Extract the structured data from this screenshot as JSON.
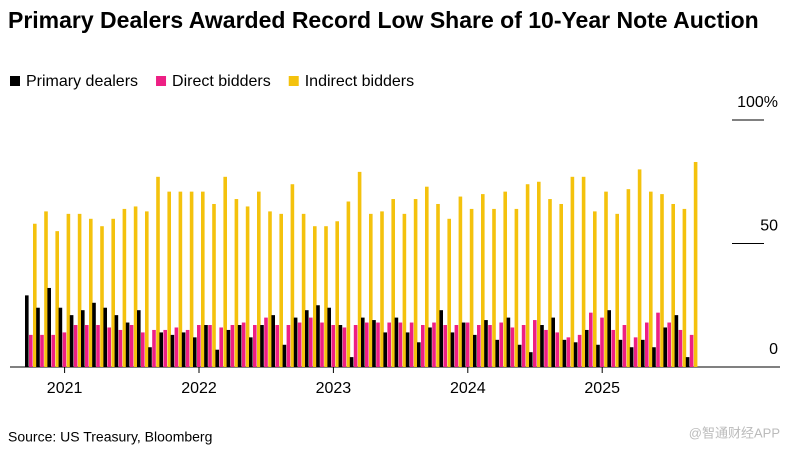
{
  "chart_data": {
    "type": "bar",
    "title": "Primary Dealers Awarded Record Low Share of 10-Year Note Auction",
    "source": "Source: US Treasury, Bloomberg",
    "watermark": "@智通财经APP",
    "categories": [
      null,
      null,
      null,
      "2021",
      null,
      null,
      null,
      null,
      null,
      null,
      null,
      null,
      null,
      null,
      null,
      "2022",
      null,
      null,
      null,
      null,
      null,
      null,
      null,
      null,
      null,
      null,
      null,
      "2023",
      null,
      null,
      null,
      null,
      null,
      null,
      null,
      null,
      null,
      null,
      null,
      "2024",
      null,
      null,
      null,
      null,
      null,
      null,
      null,
      null,
      null,
      null,
      null,
      "2025",
      null,
      null,
      null,
      null,
      null,
      null,
      null,
      null
    ],
    "series": [
      {
        "name": "Primary dealers",
        "color": "#000000",
        "values": [
          29,
          24,
          32,
          24,
          21,
          23,
          26,
          24,
          21,
          18,
          23,
          8,
          14,
          13,
          14,
          12,
          17,
          7,
          15,
          17,
          12,
          17,
          21,
          9,
          20,
          23,
          25,
          24,
          17,
          4,
          20,
          19,
          14,
          20,
          14,
          10,
          16,
          23,
          14,
          18,
          13,
          19,
          11,
          20,
          9,
          6,
          17,
          20,
          11,
          10,
          15,
          9,
          23,
          11,
          8,
          11,
          8,
          16,
          21,
          4
        ]
      },
      {
        "name": "Direct bidders",
        "color": "#ed1f84",
        "values": [
          13,
          13,
          13,
          14,
          17,
          17,
          17,
          16,
          15,
          17,
          14,
          15,
          15,
          16,
          15,
          17,
          17,
          16,
          17,
          18,
          17,
          20,
          17,
          17,
          18,
          20,
          18,
          17,
          16,
          17,
          18,
          18,
          18,
          18,
          18,
          17,
          18,
          17,
          17,
          18,
          17,
          17,
          18,
          16,
          17,
          19,
          15,
          14,
          12,
          13,
          22,
          20,
          15,
          17,
          12,
          18,
          22,
          18,
          15,
          13
        ]
      },
      {
        "name": "Indirect bidders",
        "color": "#f4c20d",
        "values": [
          58,
          63,
          55,
          62,
          62,
          60,
          57,
          60,
          64,
          65,
          63,
          77,
          71,
          71,
          71,
          71,
          66,
          77,
          68,
          65,
          71,
          63,
          62,
          74,
          62,
          57,
          57,
          59,
          67,
          79,
          62,
          63,
          68,
          62,
          68,
          73,
          66,
          60,
          69,
          64,
          70,
          64,
          71,
          64,
          74,
          75,
          68,
          66,
          77,
          77,
          63,
          71,
          62,
          72,
          80,
          71,
          70,
          66,
          64,
          83
        ]
      }
    ],
    "ylim": [
      0,
      100
    ],
    "yticks": [
      0,
      50,
      {
        "value": 100,
        "label": "100%"
      }
    ],
    "legend": "top-left"
  }
}
